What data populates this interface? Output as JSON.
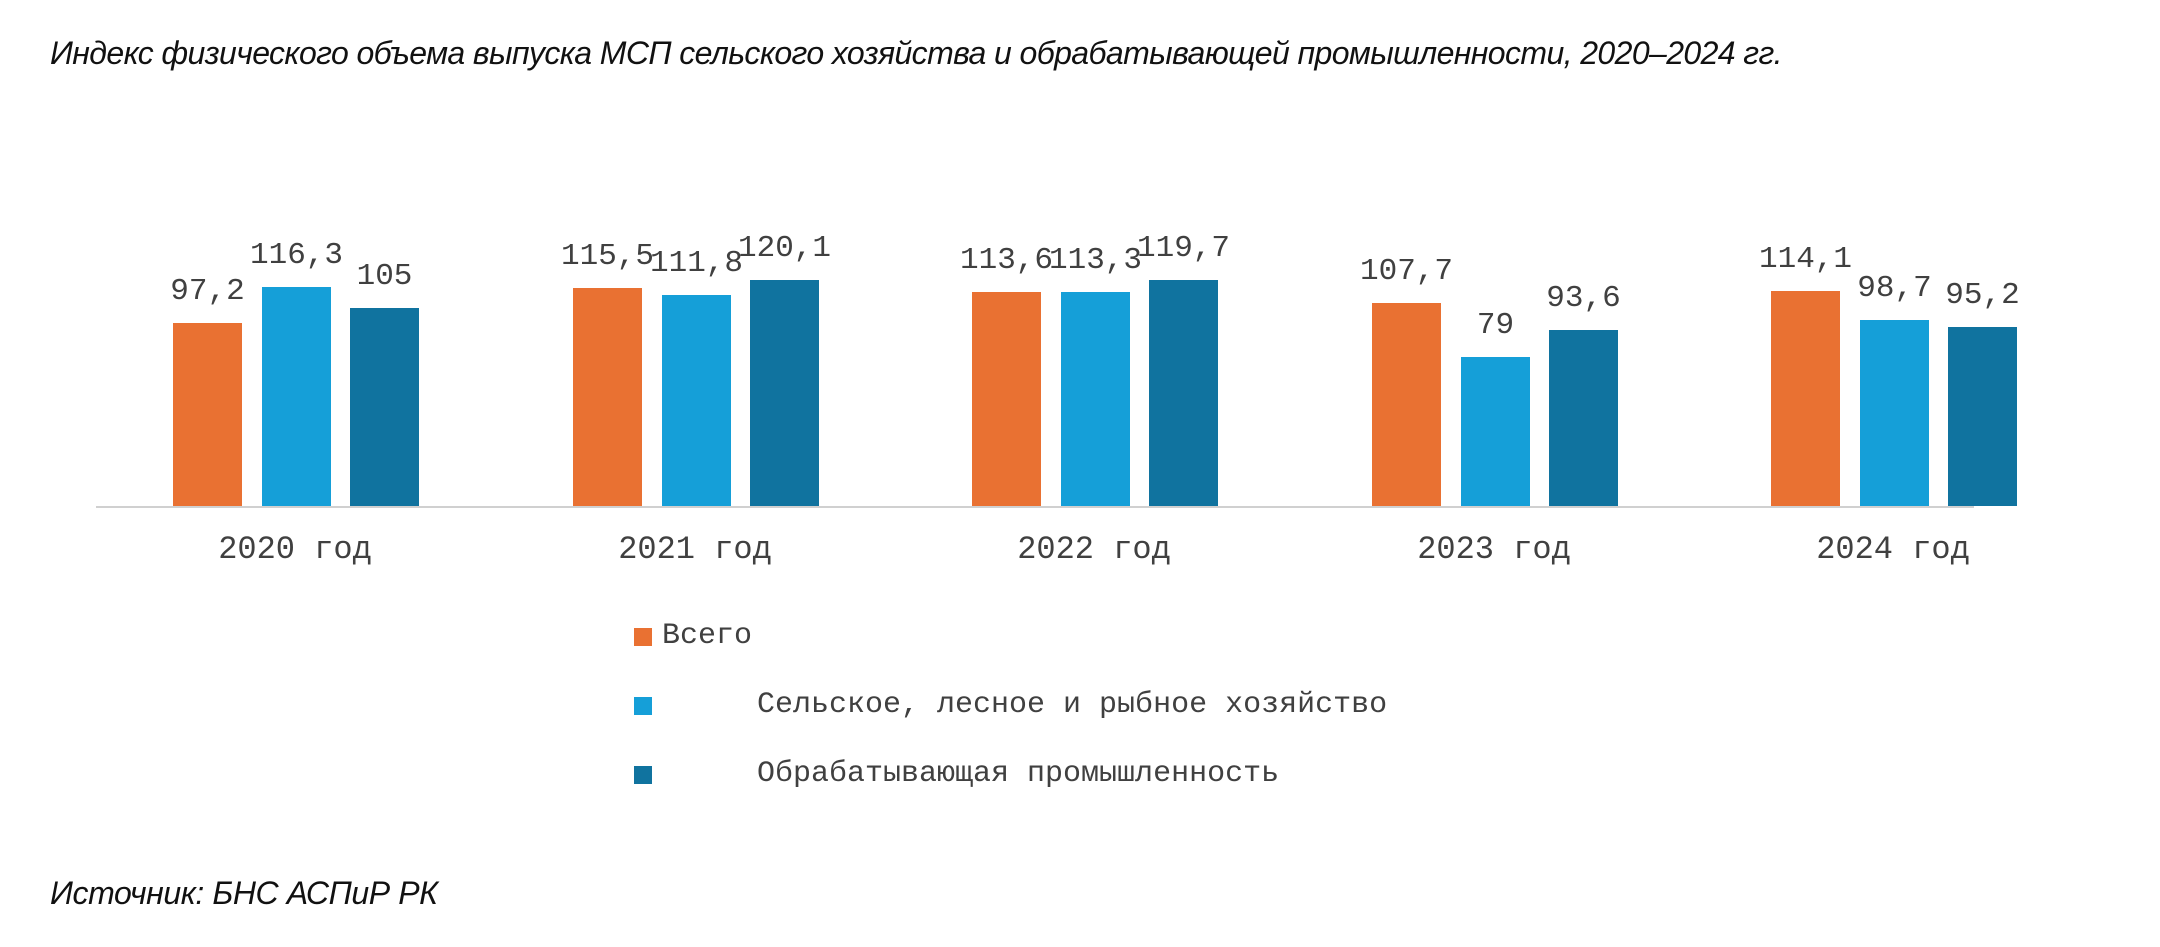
{
  "title": "Индекс физического объема выпуска МСП сельского хозяйства и обрабатывающей промышленности, 2020–2024 гг.",
  "source": "Источник: БНС АСПиР РК",
  "colors": {
    "total": "#E97132",
    "agriculture": "#159FD8",
    "manufacturing": "#10739F",
    "axis": "#D0D0D0"
  },
  "chart_data": {
    "type": "bar",
    "title": "Индекс физического объема выпуска МСП сельского хозяйства и обрабатывающей промышленности, 2020–2024 гг.",
    "categories": [
      "2020 год",
      "2021 год",
      "2022 год",
      "2023 год",
      "2024 год"
    ],
    "series": [
      {
        "name": "Всего",
        "color": "#E97132",
        "values": [
          97.2,
          115.5,
          113.6,
          107.7,
          114.1
        ],
        "labels": [
          "97,2",
          "115,5",
          "113,6",
          "107,7",
          "114,1"
        ]
      },
      {
        "name": "Сельское, лесное и рыбное хозяйство",
        "color": "#159FD8",
        "values": [
          116.3,
          111.8,
          113.3,
          79,
          98.7
        ],
        "labels": [
          "116,3",
          "111,8",
          "113,3",
          "79",
          "98,7"
        ]
      },
      {
        "name": "Обрабатывающая промышленность",
        "color": "#10739F",
        "values": [
          105,
          120.1,
          119.7,
          93.6,
          95.2
        ],
        "labels": [
          "105",
          "120,1",
          "119,7",
          "93,6",
          "95,2"
        ]
      }
    ],
    "xlabel": "",
    "ylabel": "",
    "ylim": [
      0,
      130
    ],
    "grid": false,
    "legend_position": "bottom",
    "data_labels": true,
    "source": "Источник: БНС АСПиР РК"
  },
  "legend": [
    {
      "label": "Всего",
      "color": "#E97132"
    },
    {
      "label": "Сельское, лесное и рыбное хозяйство",
      "color": "#159FD8"
    },
    {
      "label": "Обрабатывающая промышленность",
      "color": "#10739F"
    }
  ]
}
